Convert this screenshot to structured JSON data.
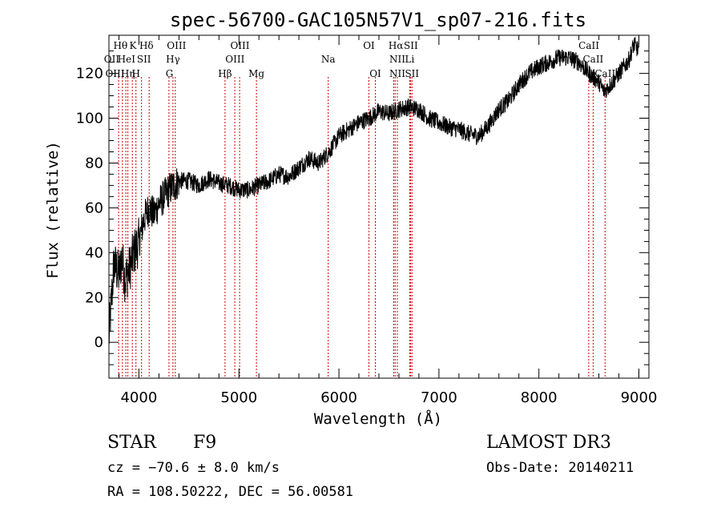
{
  "chart_data": {
    "type": "line",
    "title": "spec-56700-GAC105N57V1_sp07-216.fits",
    "xlabel": "Wavelength (Å)",
    "ylabel": "Flux (relative)",
    "xlim": [
      3700,
      9100
    ],
    "ylim": [
      -16,
      137
    ],
    "xticks": [
      4000,
      5000,
      6000,
      7000,
      8000,
      9000
    ],
    "xtick_labels": [
      "4000",
      "5000",
      "6000",
      "7000",
      "8000",
      "9000"
    ],
    "yticks": [
      0,
      20,
      40,
      60,
      80,
      100,
      120
    ],
    "ytick_labels": [
      "0",
      "20",
      "40",
      "60",
      "80",
      "100",
      "120"
    ],
    "series": [
      {
        "name": "spectrum",
        "x": [
          3700,
          3750,
          3800,
          3830,
          3860,
          3900,
          3950,
          4000,
          4050,
          4100,
          4150,
          4200,
          4250,
          4300,
          4350,
          4400,
          4500,
          4600,
          4700,
          4800,
          4900,
          5000,
          5100,
          5200,
          5300,
          5400,
          5500,
          5600,
          5700,
          5800,
          5900,
          6000,
          6100,
          6200,
          6300,
          6400,
          6500,
          6600,
          6700,
          6800,
          6900,
          7000,
          7100,
          7200,
          7300,
          7400,
          7500,
          7600,
          7700,
          7800,
          7900,
          8000,
          8100,
          8200,
          8300,
          8400,
          8500,
          8550,
          8600,
          8650,
          8700,
          8800,
          8900,
          8950,
          9000
        ],
        "y": [
          2,
          35,
          30,
          38,
          28,
          32,
          40,
          45,
          55,
          60,
          57,
          62,
          65,
          68,
          70,
          72,
          72,
          70,
          73,
          71,
          70,
          68,
          68,
          70,
          72,
          75,
          74,
          78,
          82,
          80,
          85,
          92,
          95,
          98,
          100,
          103,
          102,
          104,
          105,
          104,
          100,
          98,
          96,
          95,
          93,
          92,
          97,
          104,
          108,
          115,
          120,
          123,
          125,
          127,
          127,
          125,
          120,
          118,
          116,
          112,
          114,
          120,
          126,
          133,
          130
        ],
        "color": "#000000"
      }
    ],
    "line_markers": {
      "color": "#cc0000",
      "wavelengths": [
        3797,
        3835,
        3869,
        3889,
        3934,
        3970,
        4026,
        4102,
        4300,
        4340,
        4363,
        4861,
        4959,
        5007,
        5175,
        5893,
        6300,
        6364,
        6548,
        6563,
        6584,
        6708,
        6717,
        6731,
        8498,
        8542,
        8662
      ],
      "labels": [
        {
          "text": "Hθ",
          "x": 3815,
          "row": 1
        },
        {
          "text": "K",
          "x": 3940,
          "row": 1
        },
        {
          "text": "Hδ",
          "x": 4075,
          "row": 1
        },
        {
          "text": "OIII",
          "x": 4375,
          "row": 1
        },
        {
          "text": "OIII",
          "x": 5010,
          "row": 1
        },
        {
          "text": "OI",
          "x": 6300,
          "row": 1
        },
        {
          "text": "Hα",
          "x": 6570,
          "row": 1
        },
        {
          "text": "SII",
          "x": 6720,
          "row": 1
        },
        {
          "text": "CaII",
          "x": 8500,
          "row": 1
        },
        {
          "text": "OII",
          "x": 3727,
          "row": 2
        },
        {
          "text": "HeI",
          "x": 3875,
          "row": 2
        },
        {
          "text": "SII",
          "x": 4050,
          "row": 2
        },
        {
          "text": "Hγ",
          "x": 4340,
          "row": 2
        },
        {
          "text": "OIII",
          "x": 4960,
          "row": 2
        },
        {
          "text": "Na",
          "x": 5893,
          "row": 2
        },
        {
          "text": "NII",
          "x": 6584,
          "row": 2
        },
        {
          "text": "Li",
          "x": 6708,
          "row": 2
        },
        {
          "text": "CaII",
          "x": 8542,
          "row": 2
        },
        {
          "text": "OIII",
          "x": 3760,
          "row": 3
        },
        {
          "text": "Hη",
          "x": 3890,
          "row": 3
        },
        {
          "text": "H",
          "x": 3970,
          "row": 3
        },
        {
          "text": "G",
          "x": 4305,
          "row": 3
        },
        {
          "text": "Hβ",
          "x": 4861,
          "row": 3
        },
        {
          "text": "Mg",
          "x": 5175,
          "row": 3
        },
        {
          "text": "OI",
          "x": 6364,
          "row": 3
        },
        {
          "text": "NII",
          "x": 6584,
          "row": 3
        },
        {
          "text": "SII",
          "x": 6731,
          "row": 3
        },
        {
          "text": "CaII",
          "x": 8662,
          "row": 3
        }
      ]
    }
  },
  "info": {
    "object_class": "STAR",
    "subclass": "F9",
    "survey": "LAMOST DR3",
    "cz": "cz = −70.6 ± 8.0 km/s",
    "obs_date": "Obs-Date: 20140211",
    "coords": "RA = 108.50222, DEC =  56.00581"
  }
}
